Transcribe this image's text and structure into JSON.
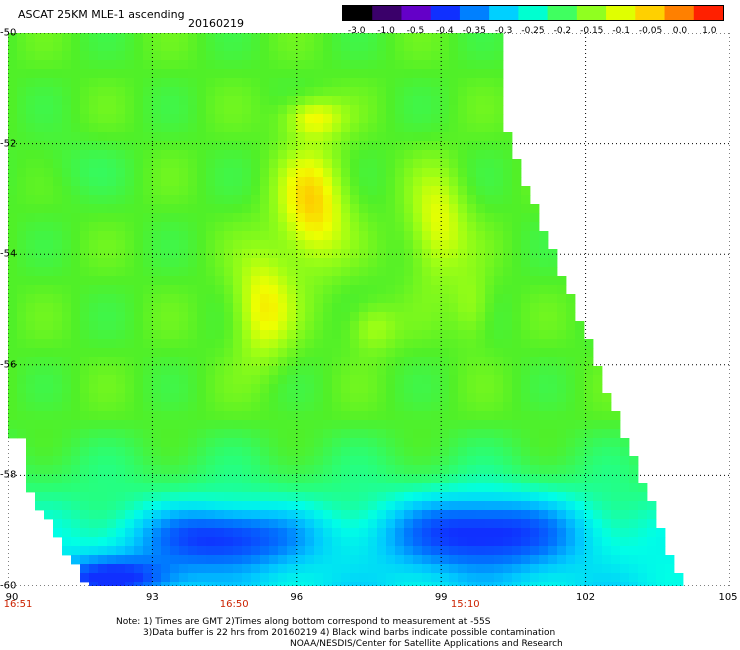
{
  "header": {
    "title": "ASCAT 25KM MLE-1 ascending",
    "date": "20160219"
  },
  "colorbar": {
    "labels": [
      "-3.0",
      "-1.0",
      "-0.5",
      "-0.4",
      "-0.35",
      "-0.3",
      "-0.25",
      "-0.2",
      "-0.15",
      "-0.1",
      "-0.05",
      "0.0",
      "1.0"
    ],
    "colors": [
      "#000000",
      "#3a006a",
      "#6400c8",
      "#1030ff",
      "#0080ff",
      "#00d0ff",
      "#00ffd0",
      "#40ff60",
      "#90ff20",
      "#e0ff00",
      "#ffd000",
      "#ff8000",
      "#ff2000"
    ]
  },
  "axes": {
    "lat_labels": [
      "-50",
      "-52",
      "-54",
      "-56",
      "-58",
      "-60"
    ],
    "lat_values": [
      -50,
      -52,
      -54,
      -56,
      -58,
      -60
    ],
    "lon_labels": [
      "90",
      "93",
      "96",
      "99",
      "102",
      "105"
    ],
    "lon_values": [
      90,
      93,
      96,
      99,
      102,
      105
    ],
    "lat_range": [
      -60,
      -50
    ],
    "lon_range": [
      90,
      105
    ],
    "time_labels": [
      "16:51",
      "16:50",
      "15:10"
    ],
    "time_lons": [
      90,
      94.7,
      99.5
    ]
  },
  "notes": {
    "line1": "Note: 1) Times are GMT 2)Times along bottom correspond to measurement at -55S",
    "line2": "3)Data buffer is 22 hrs from 20160219 4) Black wind barbs indicate possible contamination",
    "line3": "NOAA/NESDIS/Center for Satellite Applications and Research"
  }
}
